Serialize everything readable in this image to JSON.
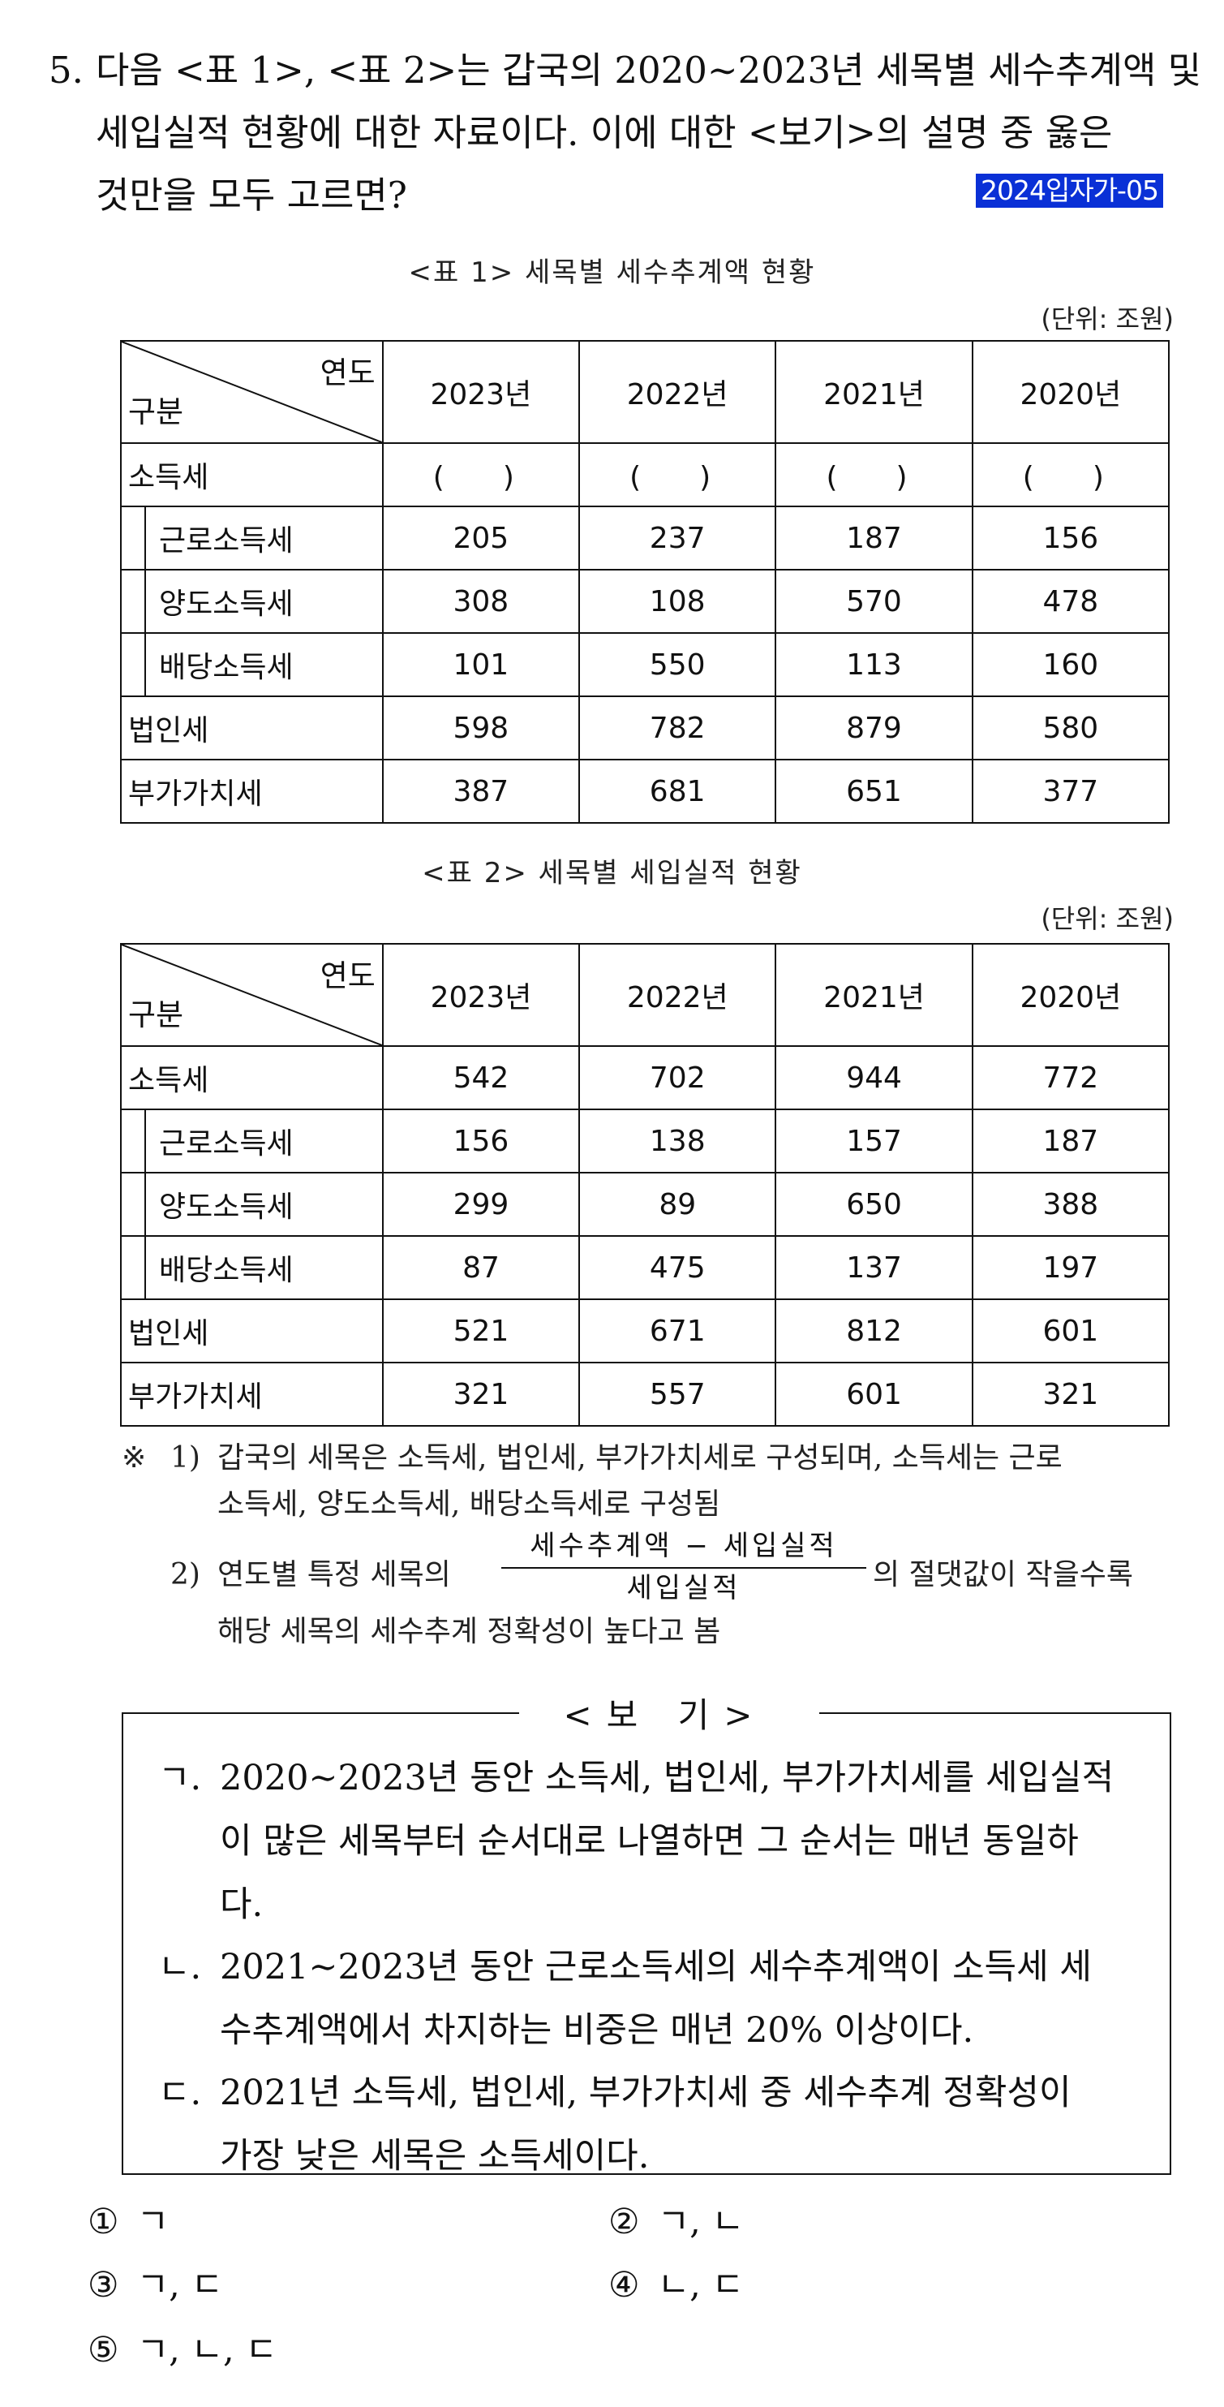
{
  "question": {
    "number": "5.",
    "line1": "다음 <표 1>, <표 2>는 갑국의 2020∼2023년 세목별 세수추계액 및",
    "line2": "세입실적 현황에 대한 자료이다. 이에 대한 <보기>의 설명 중 옳은",
    "line3": "것만을 모두 고르면?",
    "tag": "2024입자가-05",
    "tag_color": "#0a30d6"
  },
  "table1": {
    "caption": "<표 1> 세목별 세수추계액 현황",
    "unit": "(단위: 조원)",
    "corner_year": "연도",
    "corner_category": "구분",
    "years": [
      "2023년",
      "2022년",
      "2021년",
      "2020년"
    ],
    "rows": [
      {
        "label": "소득세",
        "values": [
          "(　)",
          "(　)",
          "(　)",
          "(　)"
        ]
      },
      {
        "label": "근로소득세",
        "values": [
          "205",
          "237",
          "187",
          "156"
        ]
      },
      {
        "label": "양도소득세",
        "values": [
          "308",
          "108",
          "570",
          "478"
        ]
      },
      {
        "label": "배당소득세",
        "values": [
          "101",
          "550",
          "113",
          "160"
        ]
      },
      {
        "label": "법인세",
        "values": [
          "598",
          "782",
          "879",
          "580"
        ]
      },
      {
        "label": "부가가치세",
        "values": [
          "387",
          "681",
          "651",
          "377"
        ]
      }
    ]
  },
  "table2": {
    "caption": "<표 2> 세목별 세입실적 현황",
    "unit": "(단위: 조원)",
    "corner_year": "연도",
    "corner_category": "구분",
    "years": [
      "2023년",
      "2022년",
      "2021년",
      "2020년"
    ],
    "rows": [
      {
        "label": "소득세",
        "values": [
          "542",
          "702",
          "944",
          "772"
        ]
      },
      {
        "label": "근로소득세",
        "values": [
          "156",
          "138",
          "157",
          "187"
        ]
      },
      {
        "label": "양도소득세",
        "values": [
          "299",
          "89",
          "650",
          "388"
        ]
      },
      {
        "label": "배당소득세",
        "values": [
          "87",
          "475",
          "137",
          "197"
        ]
      },
      {
        "label": "법인세",
        "values": [
          "521",
          "671",
          "812",
          "601"
        ]
      },
      {
        "label": "부가가치세",
        "values": [
          "321",
          "557",
          "601",
          "321"
        ]
      }
    ]
  },
  "notes": {
    "mark": "※",
    "n1_label": "1)",
    "n1_line1": "갑국의 세목은 소득세, 법인세, 부가가치세로 구성되며, 소득세는 근로",
    "n1_line2": "소득세, 양도소득세, 배당소득세로 구성됨",
    "n2_label": "2)",
    "n2_pre": "연도별 특정 세목의",
    "n2_numerator": "세수추계액 − 세입실적",
    "n2_denominator": "세입실적",
    "n2_post": "의 절댓값이 작을수록",
    "n2_line2": "해당 세목의 세수추계 정확성이 높다고 봄"
  },
  "bogi": {
    "title": "<보 기>",
    "items": [
      {
        "mark": "ㄱ.",
        "lines": [
          "2020∼2023년 동안 소득세, 법인세, 부가가치세를 세입실적",
          "이 많은 세목부터 순서대로 나열하면 그 순서는 매년 동일하",
          "다."
        ]
      },
      {
        "mark": "ㄴ.",
        "lines": [
          "2021∼2023년 동안 근로소득세의 세수추계액이 소득세 세",
          "수추계액에서 차지하는 비중은 매년 20% 이상이다."
        ]
      },
      {
        "mark": "ㄷ.",
        "lines": [
          "2021년 소득세, 법인세, 부가가치세 중 세수추계 정확성이",
          "가장 낮은 세목은 소득세이다."
        ]
      }
    ]
  },
  "options": [
    {
      "num": "①",
      "text": "ㄱ"
    },
    {
      "num": "②",
      "text": "ㄱ, ㄴ"
    },
    {
      "num": "③",
      "text": "ㄱ, ㄷ"
    },
    {
      "num": "④",
      "text": "ㄴ, ㄷ"
    },
    {
      "num": "⑤",
      "text": "ㄱ, ㄴ, ㄷ"
    }
  ]
}
